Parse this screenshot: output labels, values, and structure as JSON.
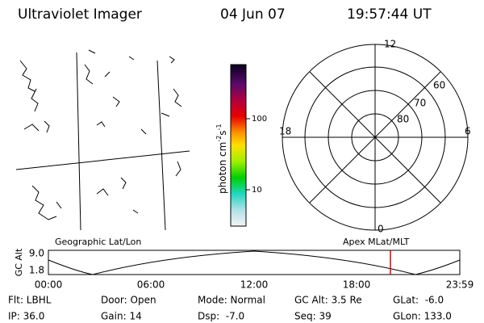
{
  "header": {
    "instrument": "Ultraviolet Imager",
    "date": "04 Jun 07",
    "time": "19:57:44 UT"
  },
  "colorbar": {
    "label": {
      "unit": "photon cm",
      "exp1": "-2",
      "unit2": "s",
      "exp2": "-1"
    },
    "ticks": [
      "100",
      "10"
    ]
  },
  "polar": {
    "mlt_labels": [
      "12",
      "6",
      "0",
      "18"
    ],
    "lat_labels": [
      "60",
      "70",
      "80"
    ]
  },
  "altitude_panel": {
    "left_title": "Geographic Lat/Lon",
    "right_title": "Apex MLat/MLT",
    "y_label": "GC Alt",
    "yticks": [
      "9.0",
      "1.8"
    ],
    "xticks": [
      "00:00",
      "06:00",
      "12:00",
      "18:00",
      "23:59"
    ]
  },
  "status": {
    "rows": [
      [
        "Flt: LBHL",
        "Door: Open",
        "Mode: Normal",
        "GC Alt: 3.5 Re",
        "GLat:  -6.0"
      ],
      [
        "IP: 36.0",
        "Gain: 14",
        "Dsp:  -7.0",
        "Seq: 39",
        "GLon: 133.0"
      ]
    ]
  }
}
